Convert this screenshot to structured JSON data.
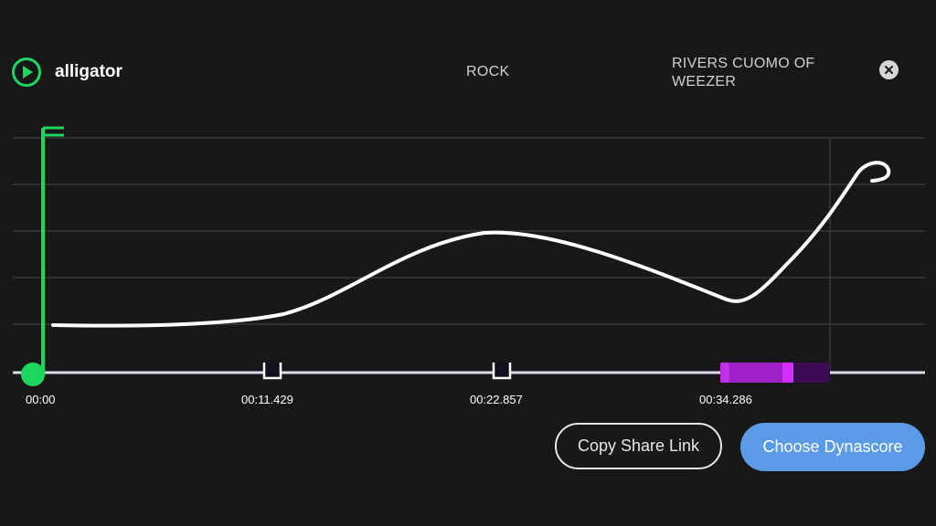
{
  "header": {
    "song_title": "alligator",
    "genre": "ROCK",
    "artist": "RIVERS CUOMO OF WEEZER",
    "play_icon": "play-circle-icon",
    "close_icon": "close-icon"
  },
  "timeline": {
    "labels": [
      "00:00",
      "00:11.429",
      "00:22.857",
      "00:34.286"
    ],
    "playhead_position": 0
  },
  "actions": {
    "copy_share_link": "Copy Share Link",
    "choose_dynascore": "Choose Dynascore"
  },
  "colors": {
    "background": "#181818",
    "accent_green": "#1ed760",
    "curve": "#ffffff",
    "grid": "#3c4048",
    "timeline_track": "#d6dde6",
    "highlight_purple": "#a020c8",
    "primary_button": "#5a9ae6"
  }
}
